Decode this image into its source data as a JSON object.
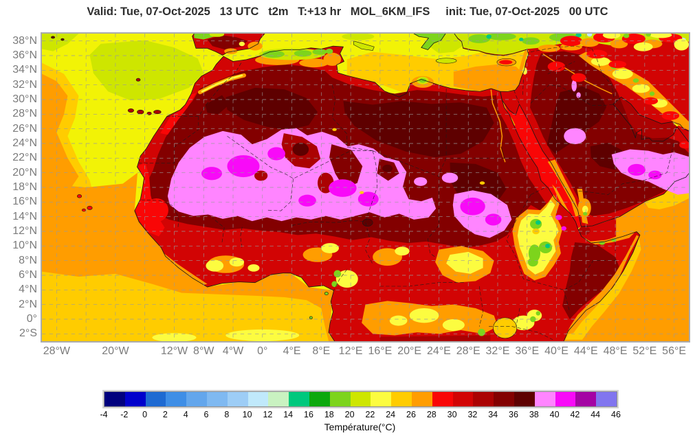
{
  "header": {
    "title": "Valid: Tue, 07-Oct-2025   13 UTC   t2m   T:+13 hr   MOL_6KM_IFS     init: Tue, 07-Oct-2025   00 UTC"
  },
  "map": {
    "extent": {
      "lon_min": -30,
      "lon_max": 58,
      "lat_min": -3,
      "lat_max": 39
    },
    "grid": {
      "lat_step": 2,
      "lon_step": 4
    },
    "lat_ticks": [
      {
        "label": "38°N",
        "value": 38
      },
      {
        "label": "36°N",
        "value": 36
      },
      {
        "label": "34°N",
        "value": 34
      },
      {
        "label": "32°N",
        "value": 32
      },
      {
        "label": "30°N",
        "value": 30
      },
      {
        "label": "28°N",
        "value": 28
      },
      {
        "label": "26°N",
        "value": 26
      },
      {
        "label": "24°N",
        "value": 24
      },
      {
        "label": "22°N",
        "value": 22
      },
      {
        "label": "20°N",
        "value": 20
      },
      {
        "label": "18°N",
        "value": 18
      },
      {
        "label": "16°N",
        "value": 16
      },
      {
        "label": "14°N",
        "value": 14
      },
      {
        "label": "12°N",
        "value": 12
      },
      {
        "label": "10°N",
        "value": 10
      },
      {
        "label": "8°N",
        "value": 8
      },
      {
        "label": "6°N",
        "value": 6
      },
      {
        "label": "4°N",
        "value": 4
      },
      {
        "label": "2°N",
        "value": 2
      },
      {
        "label": "0°",
        "value": 0
      },
      {
        "label": "2°S",
        "value": -2
      }
    ],
    "lon_ticks": [
      {
        "label": "28°W",
        "value": -28
      },
      {
        "label": "20°W",
        "value": -20
      },
      {
        "label": "12°W",
        "value": -12
      },
      {
        "label": "8°W",
        "value": -8
      },
      {
        "label": "4°W",
        "value": -4
      },
      {
        "label": "0°",
        "value": 0
      },
      {
        "label": "4°E",
        "value": 4
      },
      {
        "label": "8°E",
        "value": 8
      },
      {
        "label": "12°E",
        "value": 12
      },
      {
        "label": "16°E",
        "value": 16
      },
      {
        "label": "20°E",
        "value": 20
      },
      {
        "label": "24°E",
        "value": 24
      },
      {
        "label": "28°E",
        "value": 28
      },
      {
        "label": "32°E",
        "value": 32
      },
      {
        "label": "36°E",
        "value": 36
      },
      {
        "label": "40°E",
        "value": 40
      },
      {
        "label": "44°E",
        "value": 44
      },
      {
        "label": "48°E",
        "value": 48
      },
      {
        "label": "52°E",
        "value": 52
      },
      {
        "label": "56°E",
        "value": 56
      }
    ]
  },
  "colorbar": {
    "title": "Température(°C)",
    "tick_values": [
      -4,
      -2,
      0,
      2,
      4,
      6,
      8,
      10,
      12,
      14,
      16,
      18,
      20,
      22,
      24,
      26,
      28,
      30,
      32,
      34,
      36,
      38,
      40,
      42,
      44,
      46
    ],
    "bin_colors": [
      "#00007E",
      "#0000CC",
      "#1E6AD2",
      "#3E8EE6",
      "#63A6EC",
      "#7FB9F1",
      "#9DCDF6",
      "#C0E9FB",
      "#C9F2C1",
      "#00C87D",
      "#0CA80C",
      "#7DD41C",
      "#CEE600",
      "#FCFC40",
      "#FFCC00",
      "#FF9D00",
      "#F90606",
      "#D20404",
      "#AB0202",
      "#830000",
      "#5E0000",
      "#FF85FF",
      "#F80AF8",
      "#A404A4",
      "#8175EF"
    ]
  }
}
